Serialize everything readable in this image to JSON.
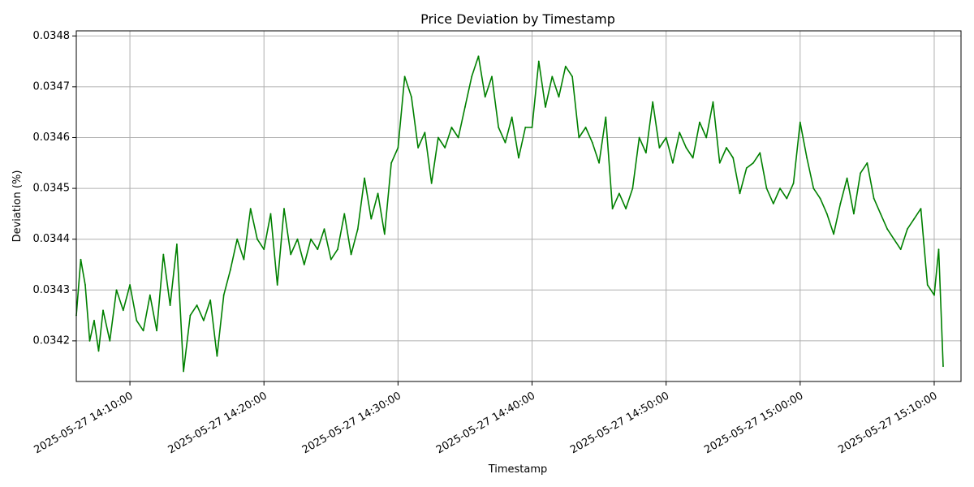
{
  "chart_data": {
    "type": "line",
    "title": "Price Deviation by Timestamp",
    "xlabel": "Timestamp",
    "ylabel": "Deviation (%)",
    "xlim": [
      "2025-05-27 14:06:00",
      "2025-05-27 15:12:00"
    ],
    "ylim": [
      0.03412,
      0.03481
    ],
    "grid": true,
    "x_ticks": [
      "2025-05-27 14:10:00",
      "2025-05-27 14:20:00",
      "2025-05-27 14:30:00",
      "2025-05-27 14:40:00",
      "2025-05-27 14:50:00",
      "2025-05-27 15:00:00",
      "2025-05-27 15:10:00"
    ],
    "y_ticks": [
      "0.0342",
      "0.0343",
      "0.0344",
      "0.0345",
      "0.0346",
      "0.0347",
      "0.0348"
    ],
    "series": [
      {
        "color": "#008000",
        "x": [
          "2025-05-27 14:06:00",
          "2025-05-27 14:06:20",
          "2025-05-27 14:06:40",
          "2025-05-27 14:07:00",
          "2025-05-27 14:07:20",
          "2025-05-27 14:07:40",
          "2025-05-27 14:08:00",
          "2025-05-27 14:08:30",
          "2025-05-27 14:09:00",
          "2025-05-27 14:09:30",
          "2025-05-27 14:10:00",
          "2025-05-27 14:10:30",
          "2025-05-27 14:11:00",
          "2025-05-27 14:11:30",
          "2025-05-27 14:12:00",
          "2025-05-27 14:12:30",
          "2025-05-27 14:13:00",
          "2025-05-27 14:13:30",
          "2025-05-27 14:14:00",
          "2025-05-27 14:14:30",
          "2025-05-27 14:15:00",
          "2025-05-27 14:15:30",
          "2025-05-27 14:16:00",
          "2025-05-27 14:16:30",
          "2025-05-27 14:17:00",
          "2025-05-27 14:17:30",
          "2025-05-27 14:18:00",
          "2025-05-27 14:18:30",
          "2025-05-27 14:19:00",
          "2025-05-27 14:19:30",
          "2025-05-27 14:20:00",
          "2025-05-27 14:20:30",
          "2025-05-27 14:21:00",
          "2025-05-27 14:21:30",
          "2025-05-27 14:22:00",
          "2025-05-27 14:22:30",
          "2025-05-27 14:23:00",
          "2025-05-27 14:23:30",
          "2025-05-27 14:24:00",
          "2025-05-27 14:24:30",
          "2025-05-27 14:25:00",
          "2025-05-27 14:25:30",
          "2025-05-27 14:26:00",
          "2025-05-27 14:26:30",
          "2025-05-27 14:27:00",
          "2025-05-27 14:27:30",
          "2025-05-27 14:28:00",
          "2025-05-27 14:28:30",
          "2025-05-27 14:29:00",
          "2025-05-27 14:29:30",
          "2025-05-27 14:30:00",
          "2025-05-27 14:30:30",
          "2025-05-27 14:31:00",
          "2025-05-27 14:31:30",
          "2025-05-27 14:32:00",
          "2025-05-27 14:32:30",
          "2025-05-27 14:33:00",
          "2025-05-27 14:33:30",
          "2025-05-27 14:34:00",
          "2025-05-27 14:34:30",
          "2025-05-27 14:35:00",
          "2025-05-27 14:35:30",
          "2025-05-27 14:36:00",
          "2025-05-27 14:36:30",
          "2025-05-27 14:37:00",
          "2025-05-27 14:37:30",
          "2025-05-27 14:38:00",
          "2025-05-27 14:38:30",
          "2025-05-27 14:39:00",
          "2025-05-27 14:39:30",
          "2025-05-27 14:40:00",
          "2025-05-27 14:40:30",
          "2025-05-27 14:41:00",
          "2025-05-27 14:41:30",
          "2025-05-27 14:42:00",
          "2025-05-27 14:42:30",
          "2025-05-27 14:43:00",
          "2025-05-27 14:43:30",
          "2025-05-27 14:44:00",
          "2025-05-27 14:44:30",
          "2025-05-27 14:45:00",
          "2025-05-27 14:45:30",
          "2025-05-27 14:46:00",
          "2025-05-27 14:46:30",
          "2025-05-27 14:47:00",
          "2025-05-27 14:47:30",
          "2025-05-27 14:48:00",
          "2025-05-27 14:48:30",
          "2025-05-27 14:49:00",
          "2025-05-27 14:49:30",
          "2025-05-27 14:50:00",
          "2025-05-27 14:50:30",
          "2025-05-27 14:51:00",
          "2025-05-27 14:51:30",
          "2025-05-27 14:52:00",
          "2025-05-27 14:52:30",
          "2025-05-27 14:53:00",
          "2025-05-27 14:53:30",
          "2025-05-27 14:54:00",
          "2025-05-27 14:54:30",
          "2025-05-27 14:55:00",
          "2025-05-27 14:55:30",
          "2025-05-27 14:56:00",
          "2025-05-27 14:56:30",
          "2025-05-27 14:57:00",
          "2025-05-27 14:57:30",
          "2025-05-27 14:58:00",
          "2025-05-27 14:58:30",
          "2025-05-27 14:59:00",
          "2025-05-27 14:59:30",
          "2025-05-27 15:00:00",
          "2025-05-27 15:00:30",
          "2025-05-27 15:01:00",
          "2025-05-27 15:01:30",
          "2025-05-27 15:02:00",
          "2025-05-27 15:02:30",
          "2025-05-27 15:03:00",
          "2025-05-27 15:03:30",
          "2025-05-27 15:04:00",
          "2025-05-27 15:04:30",
          "2025-05-27 15:05:00",
          "2025-05-27 15:05:30",
          "2025-05-27 15:06:00",
          "2025-05-27 15:06:30",
          "2025-05-27 15:07:00",
          "2025-05-27 15:07:30",
          "2025-05-27 15:08:00",
          "2025-05-27 15:08:30",
          "2025-05-27 15:09:00",
          "2025-05-27 15:09:30",
          "2025-05-27 15:10:00",
          "2025-05-27 15:10:20",
          "2025-05-27 15:10:40"
        ],
        "values": [
          0.03425,
          0.03436,
          0.03431,
          0.0342,
          0.03424,
          0.03418,
          0.03426,
          0.0342,
          0.0343,
          0.03426,
          0.03431,
          0.03424,
          0.03422,
          0.03429,
          0.03422,
          0.03437,
          0.03427,
          0.03439,
          0.03414,
          0.03425,
          0.03427,
          0.03424,
          0.03428,
          0.03417,
          0.03429,
          0.03434,
          0.0344,
          0.03436,
          0.03446,
          0.0344,
          0.03438,
          0.03445,
          0.03431,
          0.03446,
          0.03437,
          0.0344,
          0.03435,
          0.0344,
          0.03438,
          0.03442,
          0.03436,
          0.03438,
          0.03445,
          0.03437,
          0.03442,
          0.03452,
          0.03444,
          0.03449,
          0.03441,
          0.03455,
          0.03458,
          0.03472,
          0.03468,
          0.03458,
          0.03461,
          0.03451,
          0.0346,
          0.03458,
          0.03462,
          0.0346,
          0.03466,
          0.03472,
          0.03476,
          0.03468,
          0.03472,
          0.03462,
          0.03459,
          0.03464,
          0.03456,
          0.03462,
          0.03462,
          0.03475,
          0.03466,
          0.03472,
          0.03468,
          0.03474,
          0.03472,
          0.0346,
          0.03462,
          0.03459,
          0.03455,
          0.03464,
          0.03446,
          0.03449,
          0.03446,
          0.0345,
          0.0346,
          0.03457,
          0.03467,
          0.03458,
          0.0346,
          0.03455,
          0.03461,
          0.03458,
          0.03456,
          0.03463,
          0.0346,
          0.03467,
          0.03455,
          0.03458,
          0.03456,
          0.03449,
          0.03454,
          0.03455,
          0.03457,
          0.0345,
          0.03447,
          0.0345,
          0.03448,
          0.03451,
          0.03463,
          0.03456,
          0.0345,
          0.03448,
          0.03445,
          0.03441,
          0.03447,
          0.03452,
          0.03445,
          0.03453,
          0.03455,
          0.03448,
          0.03445,
          0.03442,
          0.0344,
          0.03438,
          0.03442,
          0.03444,
          0.03446,
          0.03431,
          0.03429,
          0.03438,
          0.03415
        ]
      }
    ]
  }
}
